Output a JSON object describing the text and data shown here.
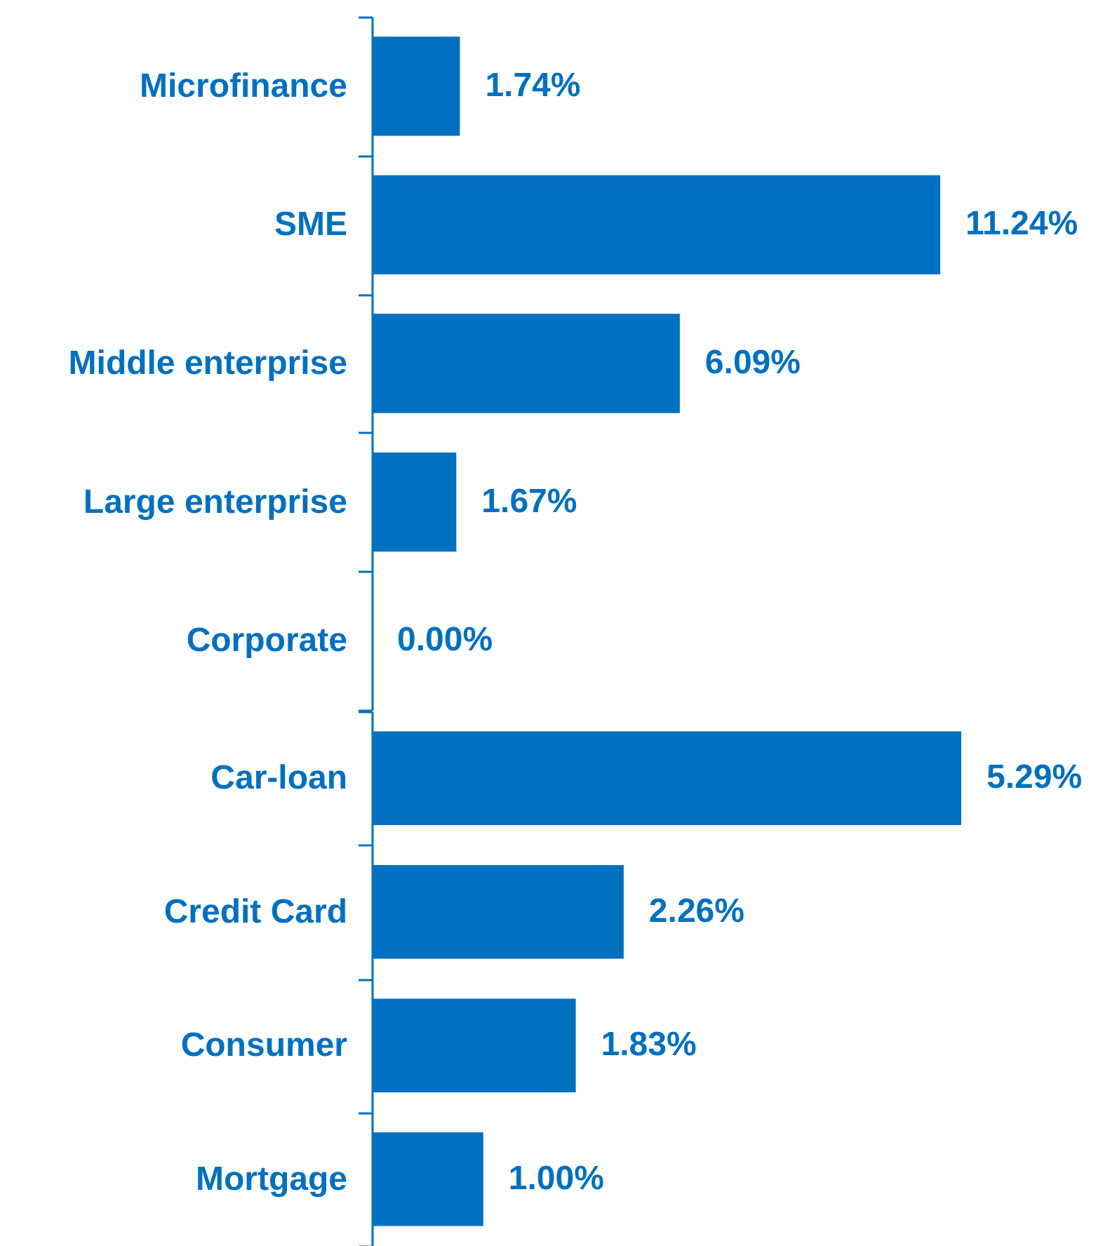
{
  "chart_data": [
    {
      "type": "bar",
      "orientation": "horizontal",
      "categories": [
        "Microfinance",
        "SME",
        "Middle enterprise",
        "Large enterprise",
        "Corporate"
      ],
      "values": [
        1.74,
        11.24,
        6.09,
        1.67,
        0.0
      ],
      "value_labels": [
        "1.74%",
        "11.24%",
        "6.09%",
        "1.67%",
        "0.00%"
      ],
      "color": "#0070c0",
      "tick_labels": "y"
    },
    {
      "type": "bar",
      "orientation": "horizontal",
      "categories": [
        "Car-loan",
        "Credit Card",
        "Consumer",
        "Mortgage"
      ],
      "values": [
        5.29,
        2.26,
        1.83,
        1.0
      ],
      "value_labels": [
        "5.29%",
        "2.26%",
        "1.83%",
        "1.00%"
      ],
      "color": "#0070c0",
      "tick_labels": "y"
    }
  ]
}
